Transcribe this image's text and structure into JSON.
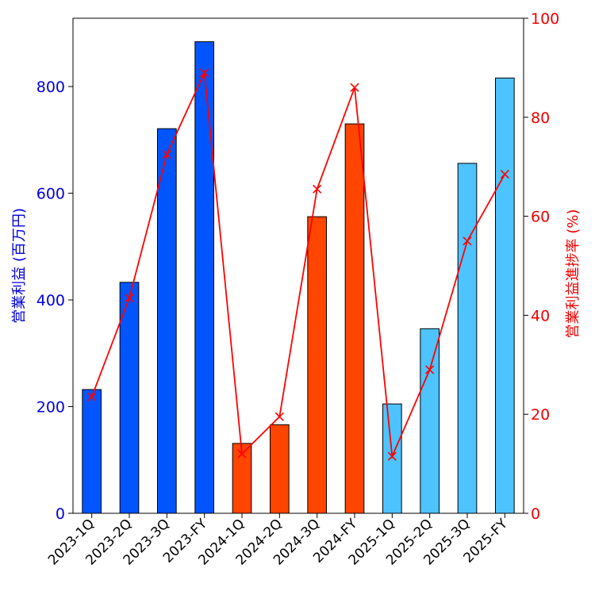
{
  "chart_data": {
    "type": "bar",
    "categories": [
      "2023-1Q",
      "2023-2Q",
      "2023-3Q",
      "2023-FY",
      "2024-1Q",
      "2024-2Q",
      "2024-3Q",
      "2024-FY",
      "2025-1Q",
      "2025-2Q",
      "2025-3Q",
      "2025-FY"
    ],
    "series": [
      {
        "type": "bar",
        "axis": "left",
        "values": [
          232,
          433,
          721,
          884,
          131,
          166,
          556,
          730,
          205,
          346,
          656,
          816
        ],
        "colors": [
          "#0055ff",
          "#0055ff",
          "#0055ff",
          "#0055ff",
          "#ff4500",
          "#ff4500",
          "#ff4500",
          "#ff4500",
          "#4dc3ff",
          "#4dc3ff",
          "#4dc3ff",
          "#4dc3ff"
        ]
      },
      {
        "type": "line",
        "axis": "right",
        "marker": "x",
        "color": "#ff0000",
        "values": [
          23.5,
          43.5,
          72.5,
          89,
          12,
          19.5,
          65.5,
          86,
          11.5,
          29,
          55,
          68.5
        ]
      }
    ],
    "ylabel": "営業利益 (百万円)",
    "y2label": "営業利益進捗率 (%)",
    "ylim": [
      0,
      928
    ],
    "y2lim": [
      0,
      100
    ],
    "yticks": [
      "0",
      "200",
      "400",
      "600",
      "800"
    ],
    "y2ticks": [
      "0",
      "20",
      "40",
      "60",
      "80",
      "100"
    ],
    "grid": false,
    "left_axis_color": "#0000dd",
    "right_axis_color": "#ee0000"
  }
}
